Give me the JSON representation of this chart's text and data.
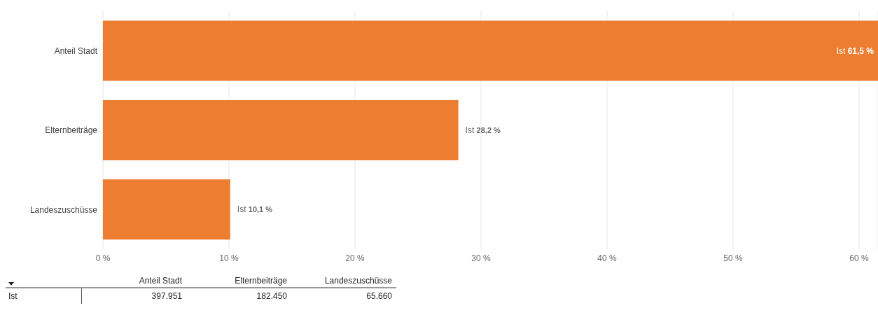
{
  "chart_data": {
    "type": "bar",
    "orientation": "horizontal",
    "categories": [
      "Anteil Stadt",
      "Elternbeiträge",
      "Landeszuschüsse"
    ],
    "series": [
      {
        "name": "Ist",
        "color": "#ed7d31",
        "values": [
          61.5,
          28.2,
          10.1
        ],
        "value_labels": [
          "61,5 %",
          "28,2 %",
          "10,1 %"
        ]
      }
    ],
    "xlim": [
      0,
      61.5
    ],
    "xticks": [
      {
        "value": 0,
        "label": "0 %"
      },
      {
        "value": 10,
        "label": "10 %"
      },
      {
        "value": 20,
        "label": "20 %"
      },
      {
        "value": 30,
        "label": "30 %"
      },
      {
        "value": 40,
        "label": "40 %"
      },
      {
        "value": 50,
        "label": "50 %"
      },
      {
        "value": 60,
        "label": "60 %"
      }
    ],
    "grid": "x",
    "annotations": [
      "397.951",
      "182.450",
      "65.660"
    ]
  }
}
